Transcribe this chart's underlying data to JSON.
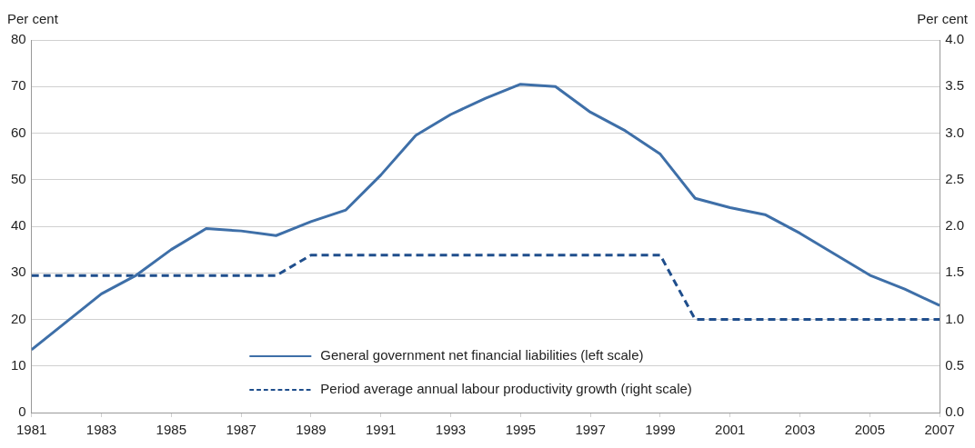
{
  "chart_data": {
    "type": "line",
    "ylabel": "Per cent",
    "y2label": "Per cent",
    "x": [
      1981,
      1982,
      1983,
      1984,
      1985,
      1986,
      1987,
      1988,
      1989,
      1990,
      1991,
      1992,
      1993,
      1994,
      1995,
      1996,
      1997,
      1998,
      1999,
      2000,
      2001,
      2002,
      2003,
      2004,
      2005,
      2006,
      2007
    ],
    "xlim": [
      1981,
      2007
    ],
    "xticks": [
      1981,
      1983,
      1985,
      1987,
      1989,
      1991,
      1993,
      1995,
      1997,
      1999,
      2001,
      2003,
      2005,
      2007
    ],
    "ylim": [
      0,
      80
    ],
    "yticks": [
      0,
      10,
      20,
      30,
      40,
      50,
      60,
      70,
      80
    ],
    "y2lim": [
      0,
      4
    ],
    "y2ticks": [
      {
        "value": 0,
        "label": "0.0"
      },
      {
        "value": 0.5,
        "label": "0.5"
      },
      {
        "value": 1,
        "label": "1.0"
      },
      {
        "value": 1.5,
        "label": "1.5"
      },
      {
        "value": 2,
        "label": "2.0"
      },
      {
        "value": 2.5,
        "label": "2.5"
      },
      {
        "value": 3,
        "label": "3.0"
      },
      {
        "value": 3.5,
        "label": "3.5"
      },
      {
        "value": 4,
        "label": "4.0"
      }
    ],
    "series": [
      {
        "name": "General government net financial liabilities (left scale)",
        "color": "#3e6fa8",
        "line_style": "solid",
        "values": [
          13.5,
          19.5,
          25.5,
          29.5,
          35,
          39.5,
          39,
          38,
          41,
          43.5,
          51,
          59.5,
          64,
          67.5,
          70.5,
          70,
          64.5,
          60.5,
          55.5,
          46,
          44,
          42.5,
          38.5,
          34,
          29.5,
          26.5,
          23
        ]
      },
      {
        "name": "Period average annual labour productivity growth (right scale)",
        "color": "#1f4e8c",
        "line_style": "dashed",
        "axis": "y2",
        "values": [
          1.47,
          1.47,
          1.47,
          1.47,
          1.47,
          1.47,
          1.47,
          1.47,
          1.69,
          1.69,
          1.69,
          1.69,
          1.69,
          1.69,
          1.69,
          1.69,
          1.69,
          1.69,
          1.69,
          1.0,
          1.0,
          1.0,
          1.0,
          1.0,
          1.0,
          1.0,
          1.0
        ]
      }
    ],
    "grid": "y",
    "legend": "bottom",
    "marker": "none"
  }
}
